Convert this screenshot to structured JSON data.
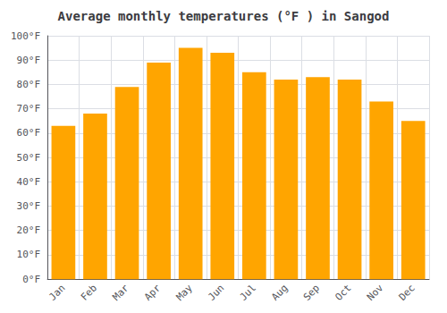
{
  "chart_data": {
    "type": "bar",
    "title": "Average monthly temperatures (°F ) in Sangod",
    "categories": [
      "Jan",
      "Feb",
      "Mar",
      "Apr",
      "May",
      "Jun",
      "Jul",
      "Aug",
      "Sep",
      "Oct",
      "Nov",
      "Dec"
    ],
    "values": [
      63,
      68,
      79,
      89,
      95,
      93,
      85,
      82,
      83,
      82,
      73,
      65
    ],
    "color": "#FFA500",
    "ylim": [
      0,
      100
    ],
    "yticks": [
      {
        "value": 0,
        "label": "0°F"
      },
      {
        "value": 10,
        "label": "10°F"
      },
      {
        "value": 20,
        "label": "20°F"
      },
      {
        "value": 30,
        "label": "30°F"
      },
      {
        "value": 40,
        "label": "40°F"
      },
      {
        "value": 50,
        "label": "50°F"
      },
      {
        "value": 60,
        "label": "60°F"
      },
      {
        "value": 70,
        "label": "70°F"
      },
      {
        "value": 80,
        "label": "80°F"
      },
      {
        "value": 90,
        "label": "90°F"
      },
      {
        "value": 100,
        "label": "100°F"
      }
    ],
    "grid": true
  }
}
